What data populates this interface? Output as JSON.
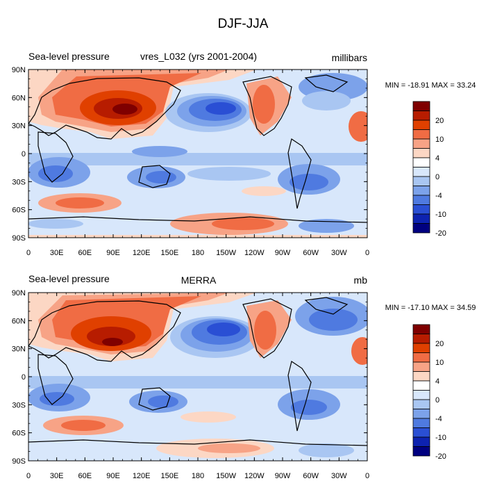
{
  "figure_title": "DJF-JJA",
  "panels": [
    {
      "left_title": "Sea-level pressure",
      "center_title": "vres_L032 (yrs 2001-2004)",
      "right_title": "millibars",
      "stats": "MIN = -18.91 MAX =  33.24"
    },
    {
      "left_title": "Sea-level pressure",
      "center_title": "MERRA",
      "right_title": "mb",
      "stats": "MIN = -17.10 MAX =  34.59"
    }
  ],
  "x_ticks": [
    "0",
    "30E",
    "60E",
    "90E",
    "120E",
    "150E",
    "180",
    "150W",
    "120W",
    "90W",
    "60W",
    "30W",
    "0"
  ],
  "y_ticks": [
    "90N",
    "60N",
    "30N",
    "0",
    "30S",
    "60S",
    "90S"
  ],
  "colorbar": {
    "labels": [
      "20",
      "10",
      "4",
      "0",
      "-4",
      "-10",
      "-20"
    ],
    "colors": [
      "#7f0000",
      "#b71c00",
      "#e04000",
      "#f06c44",
      "#f7a386",
      "#fcd7c4",
      "#ffffff",
      "#d8e7fb",
      "#a9c6f2",
      "#7ca2ea",
      "#4f7ae0",
      "#2a4fd4",
      "#0d22b0",
      "#000080"
    ]
  }
}
